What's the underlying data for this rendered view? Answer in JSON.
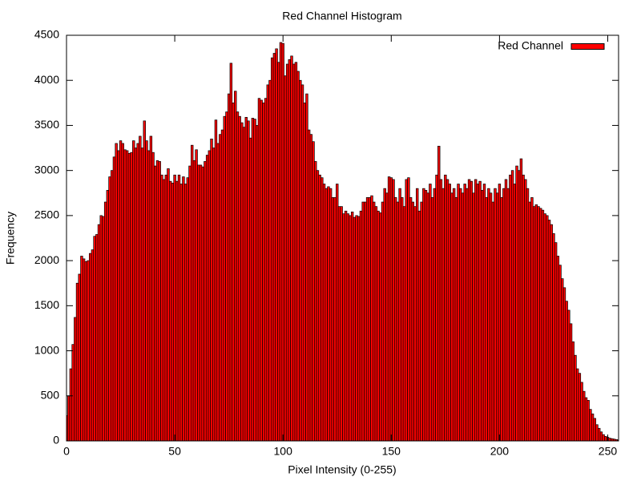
{
  "chart_data": {
    "type": "histogram",
    "title": "Red Channel Histogram",
    "xlabel": "Pixel Intensity (0-255)",
    "ylabel": "Frequency",
    "x": [
      0,
      1,
      2,
      3,
      4,
      5,
      6,
      7,
      8,
      9,
      10,
      11,
      12,
      13,
      14,
      15,
      16,
      17,
      18,
      19,
      20,
      21,
      22,
      23,
      24,
      25,
      26,
      27,
      28,
      29,
      30,
      31,
      32,
      33,
      34,
      35,
      36,
      37,
      38,
      39,
      40,
      41,
      42,
      43,
      44,
      45,
      46,
      47,
      48,
      49,
      50,
      51,
      52,
      53,
      54,
      55,
      56,
      57,
      58,
      59,
      60,
      61,
      62,
      63,
      64,
      65,
      66,
      67,
      68,
      69,
      70,
      71,
      72,
      73,
      74,
      75,
      76,
      77,
      78,
      79,
      80,
      81,
      82,
      83,
      84,
      85,
      86,
      87,
      88,
      89,
      90,
      91,
      92,
      93,
      94,
      95,
      96,
      97,
      98,
      99,
      100,
      101,
      102,
      103,
      104,
      105,
      106,
      107,
      108,
      109,
      110,
      111,
      112,
      113,
      114,
      115,
      116,
      117,
      118,
      119,
      120,
      121,
      122,
      123,
      124,
      125,
      126,
      127,
      128,
      129,
      130,
      131,
      132,
      133,
      134,
      135,
      136,
      137,
      138,
      139,
      140,
      141,
      142,
      143,
      144,
      145,
      146,
      147,
      148,
      149,
      150,
      151,
      152,
      153,
      154,
      155,
      156,
      157,
      158,
      159,
      160,
      161,
      162,
      163,
      164,
      165,
      166,
      167,
      168,
      169,
      170,
      171,
      172,
      173,
      174,
      175,
      176,
      177,
      178,
      179,
      180,
      181,
      182,
      183,
      184,
      185,
      186,
      187,
      188,
      189,
      190,
      191,
      192,
      193,
      194,
      195,
      196,
      197,
      198,
      199,
      200,
      201,
      202,
      203,
      204,
      205,
      206,
      207,
      208,
      209,
      210,
      211,
      212,
      213,
      214,
      215,
      216,
      217,
      218,
      219,
      220,
      221,
      222,
      223,
      224,
      225,
      226,
      227,
      228,
      229,
      230,
      231,
      232,
      233,
      234,
      235,
      236,
      237,
      238,
      239,
      240,
      241,
      242,
      243,
      244,
      245,
      246,
      247,
      248,
      249,
      250,
      251,
      252,
      253,
      254,
      255
    ],
    "series": [
      {
        "name": "Red Channel",
        "color": "#ff0000",
        "values": [
          280,
          500,
          800,
          1070,
          1370,
          1750,
          1850,
          2050,
          2020,
          1990,
          2000,
          2080,
          2120,
          2270,
          2290,
          2400,
          2500,
          2490,
          2650,
          2780,
          2930,
          3000,
          3150,
          3300,
          3220,
          3330,
          3300,
          3230,
          3220,
          3190,
          3200,
          3330,
          3250,
          3300,
          3380,
          3250,
          3550,
          3330,
          3220,
          3380,
          3200,
          3050,
          3110,
          3100,
          2950,
          2900,
          2950,
          3020,
          2880,
          2860,
          2950,
          2880,
          2950,
          2850,
          2930,
          2850,
          2920,
          3050,
          3280,
          3110,
          3230,
          3060,
          3060,
          3040,
          3100,
          3170,
          3220,
          3350,
          3250,
          3560,
          3300,
          3400,
          3450,
          3600,
          3650,
          3850,
          4190,
          3750,
          3880,
          3650,
          3600,
          3530,
          3480,
          3590,
          3550,
          3360,
          3580,
          3570,
          3500,
          3800,
          3780,
          3750,
          3800,
          3950,
          4000,
          4250,
          4300,
          4350,
          4200,
          4420,
          4410,
          4050,
          4180,
          4230,
          4270,
          4180,
          4200,
          4100,
          4000,
          3950,
          3750,
          3850,
          3450,
          3400,
          3320,
          3100,
          3000,
          2950,
          2920,
          2850,
          2800,
          2820,
          2800,
          2700,
          2700,
          2850,
          2600,
          2600,
          2520,
          2550,
          2520,
          2500,
          2540,
          2480,
          2500,
          2490,
          2550,
          2650,
          2650,
          2700,
          2700,
          2720,
          2650,
          2600,
          2550,
          2530,
          2650,
          2800,
          2750,
          2930,
          2920,
          2900,
          2700,
          2650,
          2800,
          2700,
          2600,
          2900,
          2920,
          2700,
          2650,
          2600,
          2800,
          2550,
          2650,
          2800,
          2780,
          2750,
          2850,
          2700,
          2800,
          2950,
          3270,
          2900,
          2800,
          2950,
          2900,
          2850,
          2750,
          2800,
          2700,
          2850,
          2800,
          2750,
          2850,
          2800,
          2900,
          2880,
          2750,
          2900,
          2850,
          2880,
          2780,
          2850,
          2700,
          2800,
          2750,
          2650,
          2800,
          2750,
          2850,
          2700,
          2800,
          2900,
          2800,
          2950,
          3000,
          2850,
          3050,
          3000,
          3130,
          2950,
          2900,
          2800,
          2650,
          2700,
          2600,
          2620,
          2600,
          2580,
          2560,
          2520,
          2500,
          2450,
          2400,
          2300,
          2200,
          2050,
          1950,
          1800,
          1700,
          1550,
          1450,
          1300,
          1100,
          950,
          800,
          750,
          650,
          550,
          480,
          450,
          350,
          300,
          250,
          180,
          140,
          100,
          70,
          50,
          40,
          30,
          25,
          20,
          15,
          10
        ]
      }
    ],
    "xlim": [
      0,
      255
    ],
    "xticks": [
      0,
      50,
      100,
      150,
      200,
      250
    ],
    "ylim": [
      0,
      4500
    ],
    "yticks": [
      0,
      500,
      1000,
      1500,
      2000,
      2500,
      3000,
      3500,
      4000,
      4500
    ],
    "legend": "upper right"
  }
}
